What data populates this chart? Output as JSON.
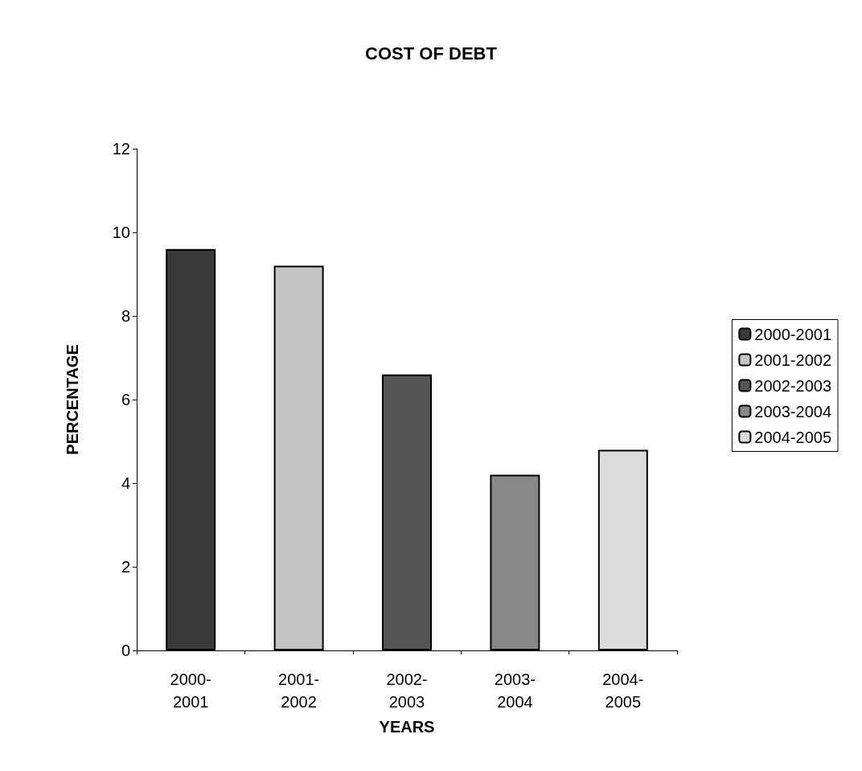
{
  "chart_data": {
    "type": "bar",
    "title": "COST OF DEBT",
    "xlabel": "YEARS",
    "ylabel": "PERCENTAGE",
    "categories": [
      "2000-\n2001",
      "2001-\n2002",
      "2002-\n2003",
      "2003-\n2004",
      "2004-\n2005"
    ],
    "series": [
      {
        "name": "2000-2001",
        "color": "#3a3a3a",
        "values": [
          9.6,
          null,
          null,
          null,
          null
        ]
      },
      {
        "name": "2001-2002",
        "color": "#c4c4c4",
        "values": [
          null,
          9.2,
          null,
          null,
          null
        ]
      },
      {
        "name": "2002-2003",
        "color": "#555555",
        "values": [
          null,
          null,
          6.6,
          null,
          null
        ]
      },
      {
        "name": "2003-2004",
        "color": "#888888",
        "values": [
          null,
          null,
          null,
          4.2,
          null
        ]
      },
      {
        "name": "2004-2005",
        "color": "#dcdcdc",
        "values": [
          null,
          null,
          null,
          null,
          4.8
        ]
      }
    ],
    "ylim": [
      0,
      12
    ],
    "yticks": [
      0,
      2,
      4,
      6,
      8,
      10,
      12
    ],
    "grid": false,
    "legend": "right"
  }
}
